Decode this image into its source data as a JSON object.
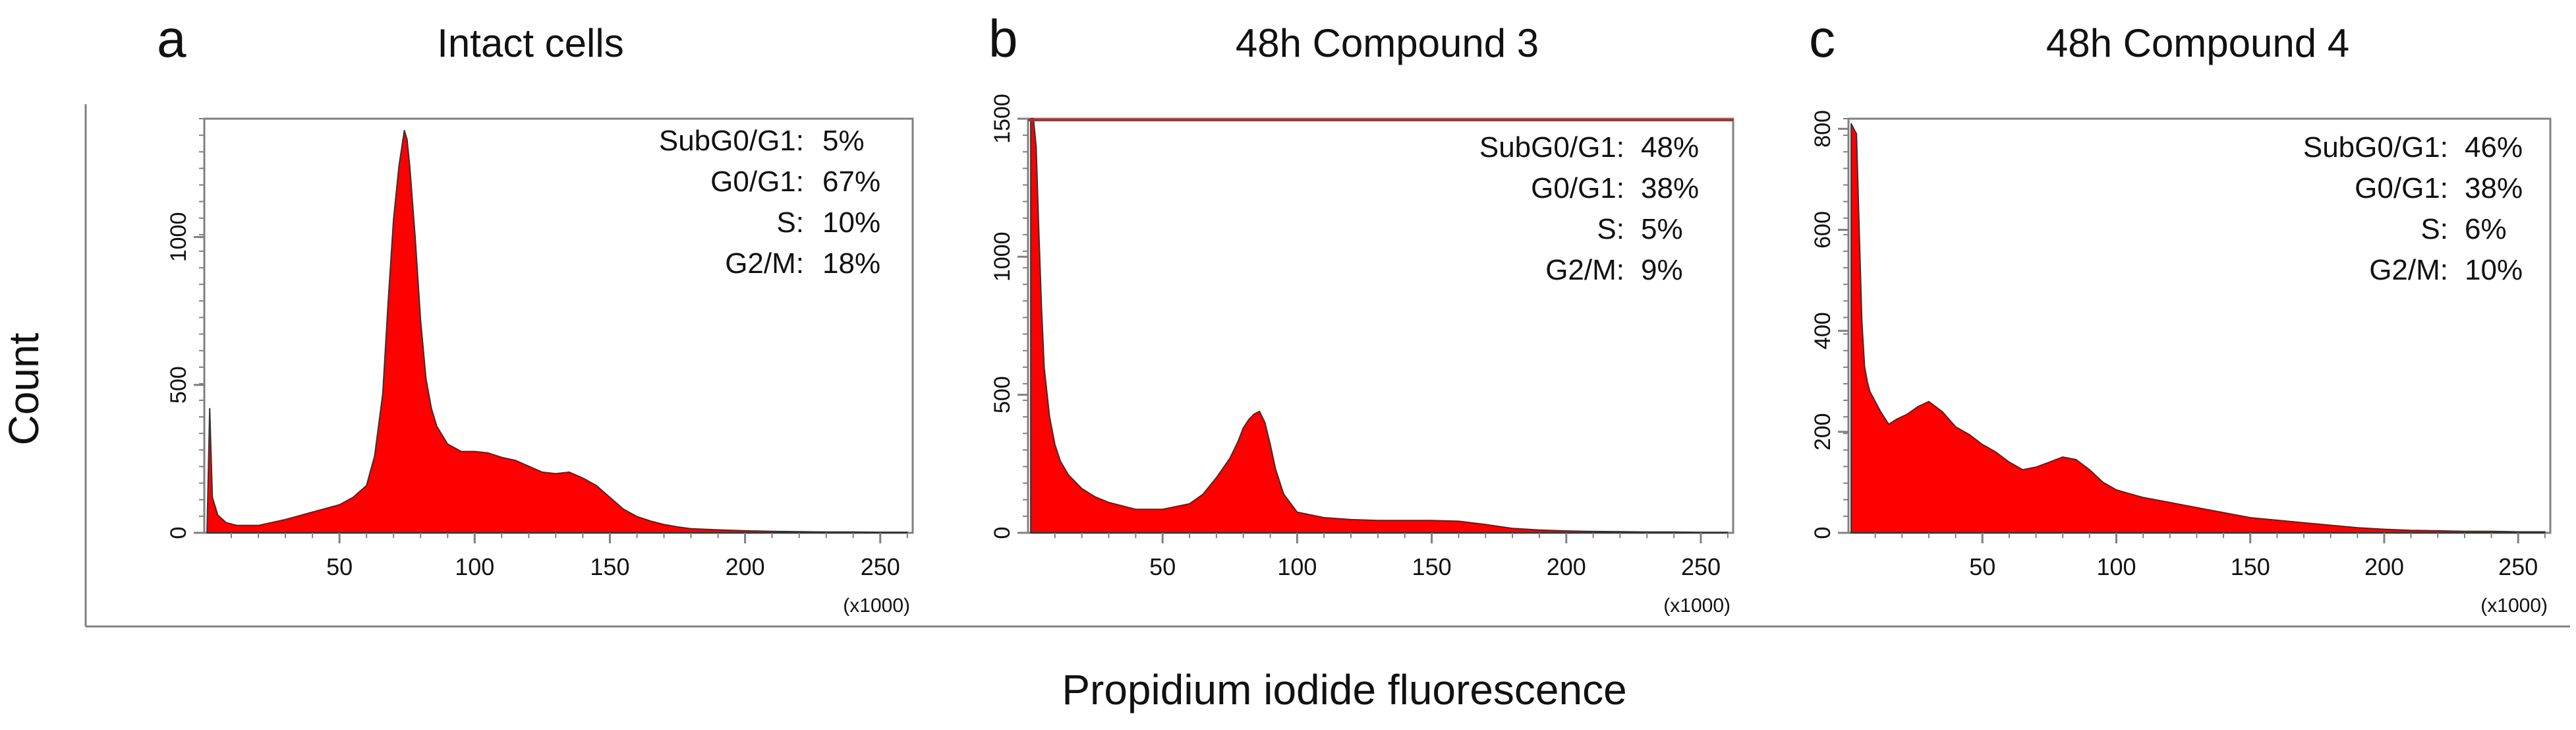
{
  "figure": {
    "shared_ylabel": "Count",
    "shared_xlabel": "Propidium iodide fluorescence"
  },
  "colors": {
    "fill": "#ff0000",
    "outline": "#333333",
    "axis": "#808080",
    "text": "#111111",
    "top_line": "#b03030"
  },
  "chart_data": [
    {
      "type": "area",
      "panel_letter": "a",
      "title": "Intact cells",
      "xlim": [
        0,
        262
      ],
      "ylim": [
        0,
        1400
      ],
      "x_ticks": [
        50,
        100,
        150,
        200,
        250
      ],
      "y_ticks": [
        0,
        500,
        1000
      ],
      "x_unit_label": "(x1000)",
      "stats": [
        {
          "label": "SubG0/G1:",
          "value": "5%"
        },
        {
          "label": "G0/G1:",
          "value": "67%"
        },
        {
          "label": "S:",
          "value": "10%"
        },
        {
          "label": "G2/M:",
          "value": "18%"
        }
      ],
      "x": [
        1,
        2,
        3,
        5,
        8,
        12,
        20,
        30,
        40,
        50,
        55,
        60,
        63,
        66,
        68,
        70,
        72,
        74,
        75,
        76,
        78,
        80,
        82,
        84,
        86,
        88,
        90,
        95,
        100,
        105,
        110,
        115,
        120,
        125,
        130,
        135,
        140,
        145,
        150,
        155,
        160,
        165,
        170,
        175,
        180,
        190,
        200,
        210,
        220,
        230,
        240,
        250,
        260
      ],
      "y": [
        0,
        420,
        120,
        60,
        35,
        25,
        25,
        45,
        70,
        95,
        120,
        160,
        260,
        470,
        780,
        1060,
        1240,
        1360,
        1330,
        1240,
        1000,
        720,
        520,
        420,
        360,
        330,
        300,
        275,
        275,
        270,
        255,
        245,
        225,
        205,
        200,
        205,
        185,
        160,
        120,
        80,
        55,
        40,
        28,
        20,
        14,
        10,
        7,
        5,
        4,
        3,
        3,
        2,
        2
      ]
    },
    {
      "type": "area",
      "panel_letter": "b",
      "title": "48h Compound 3",
      "xlim": [
        0,
        262
      ],
      "ylim": [
        0,
        1500
      ],
      "x_ticks": [
        50,
        100,
        150,
        200,
        250
      ],
      "y_ticks": [
        0,
        500,
        1000,
        1500
      ],
      "x_unit_label": "(x1000)",
      "stats": [
        {
          "label": "SubG0/G1:",
          "value": "48%"
        },
        {
          "label": "G0/G1:",
          "value": "38%"
        },
        {
          "label": "S:",
          "value": "5%"
        },
        {
          "label": "G2/M:",
          "value": "9%"
        }
      ],
      "x": [
        1,
        2,
        3,
        4,
        5,
        6,
        8,
        10,
        12,
        15,
        20,
        25,
        30,
        40,
        50,
        60,
        65,
        70,
        75,
        78,
        80,
        82,
        84,
        86,
        88,
        90,
        92,
        95,
        100,
        110,
        120,
        130,
        140,
        150,
        160,
        170,
        180,
        190,
        200,
        210,
        220,
        230,
        240,
        250,
        260
      ],
      "y": [
        1500,
        1500,
        1400,
        1100,
        820,
        600,
        420,
        320,
        260,
        210,
        160,
        130,
        110,
        85,
        85,
        105,
        140,
        200,
        270,
        330,
        380,
        410,
        430,
        440,
        400,
        320,
        230,
        140,
        75,
        55,
        48,
        45,
        45,
        45,
        42,
        30,
        16,
        10,
        7,
        5,
        4,
        3,
        3,
        2,
        2
      ]
    },
    {
      "type": "area",
      "panel_letter": "c",
      "title": "48h Compound 4",
      "xlim": [
        0,
        262
      ],
      "ylim": [
        0,
        820
      ],
      "x_ticks": [
        50,
        100,
        150,
        200,
        250
      ],
      "y_ticks": [
        0,
        200,
        400,
        600,
        800
      ],
      "x_unit_label": "(x1000)",
      "stats": [
        {
          "label": "SubG0/G1:",
          "value": "46%"
        },
        {
          "label": "G0/G1:",
          "value": "38%"
        },
        {
          "label": "S:",
          "value": "6%"
        },
        {
          "label": "G2/M:",
          "value": "10%"
        }
      ],
      "x": [
        1,
        2,
        3,
        4,
        5,
        6,
        7,
        8,
        10,
        12,
        15,
        18,
        22,
        26,
        30,
        35,
        40,
        45,
        50,
        55,
        60,
        65,
        70,
        75,
        80,
        85,
        90,
        95,
        100,
        110,
        120,
        130,
        140,
        150,
        160,
        170,
        180,
        190,
        200,
        210,
        220,
        230,
        240,
        250,
        260
      ],
      "y": [
        810,
        800,
        790,
        600,
        420,
        330,
        300,
        280,
        260,
        240,
        215,
        225,
        235,
        250,
        260,
        240,
        210,
        195,
        175,
        160,
        140,
        125,
        130,
        140,
        150,
        145,
        125,
        100,
        85,
        70,
        60,
        50,
        40,
        30,
        25,
        20,
        15,
        10,
        7,
        5,
        4,
        3,
        3,
        2,
        2
      ]
    }
  ]
}
